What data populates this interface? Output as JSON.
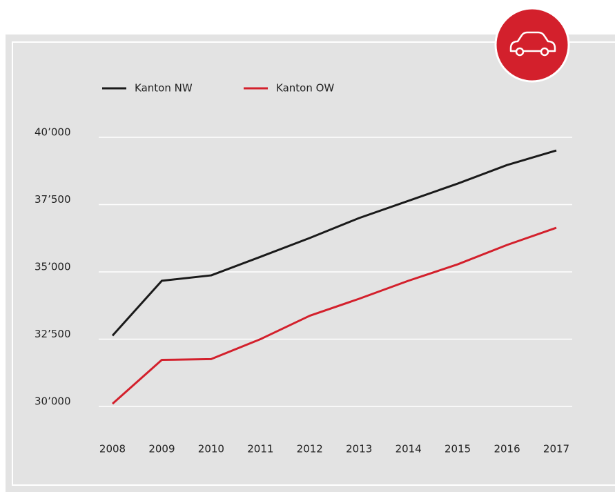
{
  "chart_data": {
    "type": "line",
    "categories": [
      "2008",
      "2009",
      "2010",
      "2011",
      "2012",
      "2013",
      "2014",
      "2015",
      "2016",
      "2017"
    ],
    "series": [
      {
        "name": "Kanton NW",
        "color": "#1a1a1a",
        "values": [
          32630,
          34670,
          34870,
          35560,
          36260,
          37000,
          37640,
          38280,
          38970,
          39510
        ]
      },
      {
        "name": "Kanton OW",
        "color": "#d3202c",
        "values": [
          30100,
          31730,
          31760,
          32500,
          33370,
          34000,
          34670,
          35280,
          36000,
          36640
        ]
      }
    ],
    "ylim": [
      30000,
      40000
    ],
    "yticks": [
      {
        "value": 30000,
        "label": "30’000"
      },
      {
        "value": 32500,
        "label": "32’500"
      },
      {
        "value": 35000,
        "label": "35’000"
      },
      {
        "value": 37500,
        "label": "37’500"
      },
      {
        "value": 40000,
        "label": "40’000"
      }
    ],
    "grid": true
  }
}
